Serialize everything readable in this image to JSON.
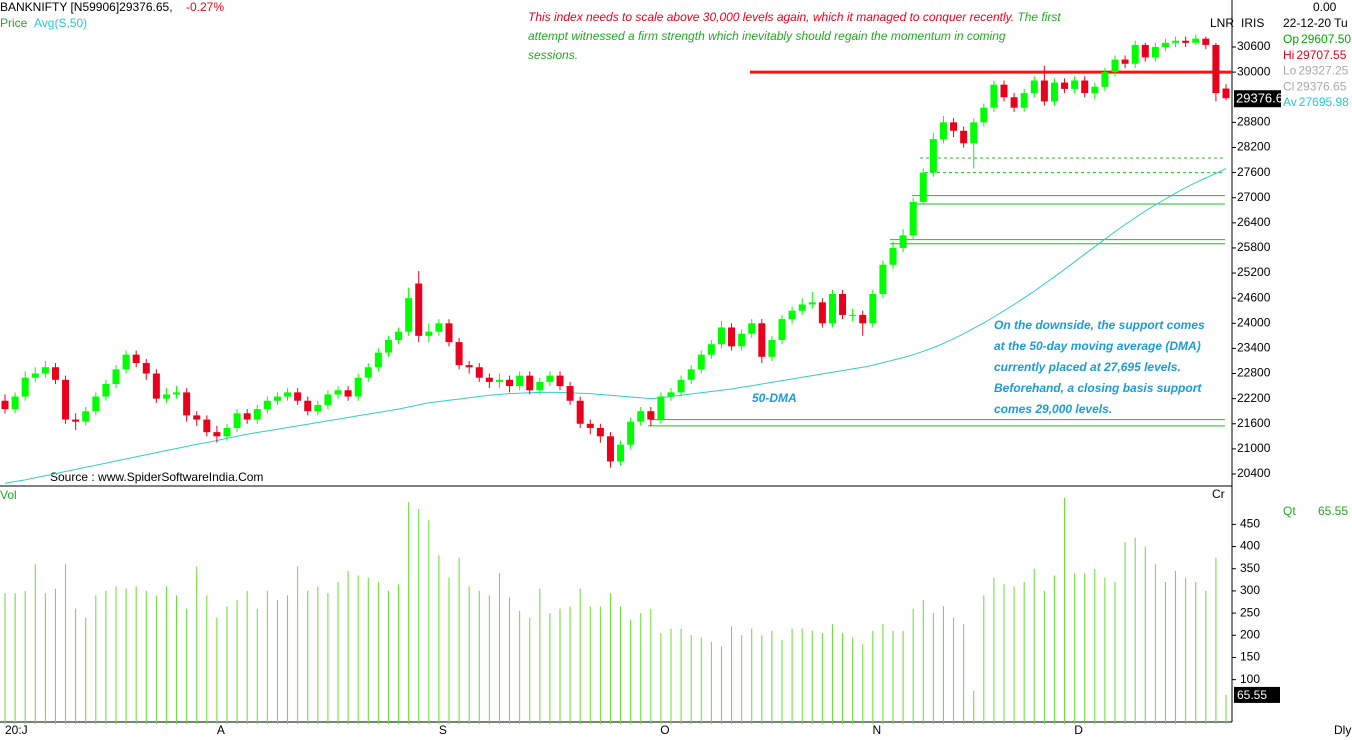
{
  "chart_data": [
    {
      "type": "candlestick",
      "title": "BANKNIFTY [N59906]29376.65,",
      "change": "-0.27%",
      "price_label": "Price",
      "ma_label": "Avg(S,50)",
      "top_labels": [
        "LNR",
        "IRIS"
      ],
      "corner_value": "0.00",
      "date": "22-12-20 Tu",
      "source": "Source : www.SpiderSoftwareIndia.Com",
      "price_tag": "29376.6",
      "up_color": "#00ff00",
      "down_color": "#e8001c",
      "categories": [
        "20:J",
        null,
        null,
        null,
        null,
        null,
        null,
        null,
        null,
        null,
        null,
        null,
        null,
        null,
        null,
        null,
        null,
        null,
        null,
        null,
        null,
        "A",
        null,
        null,
        null,
        null,
        null,
        null,
        null,
        null,
        null,
        null,
        null,
        null,
        null,
        null,
        null,
        null,
        null,
        null,
        null,
        null,
        null,
        "S",
        null,
        null,
        null,
        null,
        null,
        null,
        null,
        null,
        null,
        null,
        null,
        null,
        null,
        null,
        null,
        null,
        null,
        null,
        null,
        null,
        null,
        "O",
        null,
        null,
        null,
        null,
        null,
        null,
        null,
        null,
        null,
        null,
        null,
        null,
        null,
        null,
        null,
        null,
        null,
        null,
        null,
        null,
        "N",
        null,
        null,
        null,
        null,
        null,
        null,
        null,
        null,
        null,
        null,
        null,
        null,
        null,
        null,
        null,
        null,
        null,
        null,
        null,
        "D",
        null,
        null,
        null,
        null,
        null,
        null,
        null,
        null,
        null,
        null,
        null,
        null,
        null,
        null,
        null
      ],
      "open": [
        22150,
        21950,
        22250,
        22700,
        22800,
        22950,
        22650,
        21700,
        21650,
        21900,
        22250,
        22550,
        22900,
        23250,
        23050,
        22800,
        22200,
        22300,
        22350,
        21800,
        21700,
        21400,
        21300,
        21500,
        21850,
        21700,
        21950,
        22150,
        22250,
        22350,
        22150,
        21900,
        22050,
        22300,
        22400,
        22250,
        22700,
        22950,
        23300,
        23600,
        23800,
        24950,
        23700,
        23800,
        24000,
        23550,
        23000,
        22950,
        22700,
        22600,
        22650,
        22500,
        22750,
        22400,
        22600,
        22750,
        22500,
        22150,
        21600,
        21500,
        21300,
        20700,
        21100,
        21650,
        21900,
        21700,
        22250,
        22350,
        22650,
        22900,
        23250,
        23500,
        23900,
        23450,
        23750,
        24000,
        23200,
        23600,
        24100,
        24300,
        24450,
        24500,
        24000,
        24700,
        24200,
        24200,
        24000,
        24700,
        25400,
        25800,
        26100,
        26900,
        27600,
        28400,
        28800,
        28600,
        28300,
        28800,
        29150,
        29700,
        29400,
        29150,
        29500,
        29800,
        29300,
        29750,
        29600,
        29800,
        29500,
        29650,
        30000,
        30300,
        30200,
        30650,
        30350,
        30600,
        30700,
        30750,
        30700,
        30800,
        30650,
        29607.5
      ],
      "high": [
        22300,
        22350,
        22850,
        22950,
        23100,
        23050,
        22750,
        21850,
        22000,
        22350,
        22650,
        23000,
        23350,
        23350,
        23150,
        22900,
        22450,
        22500,
        22450,
        21900,
        21800,
        21550,
        21600,
        21950,
        21950,
        22050,
        22250,
        22350,
        22450,
        22450,
        22250,
        22150,
        22400,
        22500,
        22500,
        22800,
        23050,
        23400,
        23700,
        23900,
        24850,
        25250,
        24000,
        24100,
        24100,
        23650,
        23100,
        23050,
        22800,
        22800,
        22750,
        22850,
        22850,
        22700,
        22850,
        22850,
        22600,
        22250,
        21700,
        21600,
        21400,
        21200,
        21750,
        22000,
        22000,
        22350,
        22450,
        22750,
        23000,
        23350,
        23600,
        24050,
        24000,
        23850,
        24100,
        24100,
        23700,
        24200,
        24400,
        24600,
        24750,
        24600,
        24800,
        24800,
        24350,
        24300,
        24800,
        25500,
        25950,
        26250,
        27000,
        27700,
        28550,
        28950,
        28900,
        28700,
        28900,
        29250,
        29800,
        29800,
        29500,
        29600,
        29900,
        30150,
        29850,
        29850,
        29900,
        29900,
        29750,
        30100,
        30400,
        30400,
        30750,
        30700,
        30700,
        30800,
        30850,
        30850,
        30900,
        30850,
        30700,
        29707.55
      ],
      "low": [
        21850,
        21850,
        22150,
        22600,
        22700,
        22550,
        21600,
        21450,
        21550,
        21800,
        22150,
        22450,
        22800,
        22950,
        22650,
        22100,
        22100,
        22200,
        21650,
        21550,
        21300,
        21150,
        21200,
        21400,
        21600,
        21600,
        21850,
        22050,
        22150,
        22050,
        21800,
        21800,
        21950,
        22200,
        22150,
        22150,
        22600,
        22850,
        23200,
        23500,
        23700,
        23550,
        23550,
        23700,
        23450,
        22900,
        22800,
        22600,
        22450,
        22450,
        22350,
        22400,
        22300,
        22300,
        22500,
        22400,
        22050,
        21500,
        21350,
        21150,
        20550,
        20600,
        21000,
        21550,
        21550,
        21600,
        22150,
        22250,
        22550,
        22800,
        23150,
        23400,
        23350,
        23350,
        23650,
        23050,
        23100,
        23500,
        24000,
        24200,
        24350,
        23900,
        23900,
        24100,
        24050,
        23700,
        23900,
        24600,
        25300,
        25700,
        26000,
        26850,
        27500,
        28300,
        28450,
        28200,
        27700,
        28700,
        29050,
        29300,
        29050,
        29050,
        29400,
        29200,
        29200,
        29500,
        29500,
        29400,
        29350,
        29550,
        29900,
        30100,
        30100,
        30250,
        30250,
        30500,
        30600,
        30600,
        30650,
        30550,
        29300,
        29327.25
      ],
      "close": [
        21950,
        22250,
        22700,
        22800,
        22950,
        22650,
        21700,
        21650,
        21900,
        22250,
        22550,
        22900,
        23250,
        23050,
        22800,
        22200,
        22300,
        22350,
        21800,
        21700,
        21400,
        21300,
        21500,
        21850,
        21700,
        21950,
        22150,
        22250,
        22350,
        22150,
        21900,
        22050,
        22300,
        22400,
        22250,
        22700,
        22950,
        23300,
        23600,
        23800,
        24600,
        23700,
        23800,
        24000,
        23550,
        23000,
        22950,
        22700,
        22600,
        22650,
        22500,
        22750,
        22400,
        22600,
        22750,
        22500,
        22150,
        21600,
        21500,
        21300,
        20700,
        21100,
        21650,
        21900,
        21700,
        22250,
        22350,
        22650,
        22900,
        23250,
        23500,
        23900,
        23450,
        23750,
        24000,
        23200,
        23600,
        24100,
        24300,
        24450,
        24500,
        24000,
        24700,
        24200,
        24200,
        24000,
        24700,
        25400,
        25800,
        26100,
        26900,
        27600,
        28400,
        28800,
        28600,
        28300,
        28800,
        29150,
        29700,
        29400,
        29150,
        29500,
        29800,
        29300,
        29750,
        29600,
        29800,
        29500,
        29650,
        30000,
        30300,
        30200,
        30650,
        30350,
        30600,
        30700,
        30750,
        30700,
        30800,
        30650,
        29500,
        29376.65
      ],
      "ma": {
        "name": "50-DMA",
        "color": "#33cccc",
        "values": [
          20180,
          20220,
          20260,
          20310,
          20360,
          20410,
          20460,
          20510,
          20560,
          20610,
          20660,
          20710,
          20760,
          20810,
          20860,
          20910,
          20960,
          21010,
          21060,
          21110,
          21150,
          21200,
          21250,
          21300,
          21350,
          21390,
          21430,
          21470,
          21510,
          21550,
          21590,
          21630,
          21670,
          21710,
          21750,
          21790,
          21830,
          21870,
          21910,
          21950,
          22000,
          22050,
          22100,
          22130,
          22160,
          22190,
          22220,
          22250,
          22280,
          22300,
          22320,
          22330,
          22340,
          22350,
          22350,
          22350,
          22340,
          22330,
          22320,
          22300,
          22280,
          22260,
          22240,
          22220,
          22200,
          22220,
          22250,
          22280,
          22310,
          22340,
          22370,
          22400,
          22430,
          22470,
          22510,
          22550,
          22590,
          22630,
          22670,
          22710,
          22750,
          22790,
          22830,
          22870,
          22910,
          22950,
          23000,
          23060,
          23120,
          23180,
          23250,
          23330,
          23420,
          23520,
          23630,
          23750,
          23880,
          24010,
          24150,
          24300,
          24450,
          24610,
          24770,
          24940,
          25110,
          25290,
          25470,
          25650,
          25830,
          26010,
          26190,
          26360,
          26520,
          26680,
          26830,
          26970,
          27110,
          27240,
          27360,
          27470,
          27580,
          27695.98
        ]
      },
      "levels": [
        {
          "value": 30000,
          "color": "#ff1010"
        },
        {
          "value": 27950,
          "color": "#22bb22",
          "dashed": true
        },
        {
          "value": 27600,
          "color": "#22bb22",
          "dashed": true
        },
        {
          "value": 27050,
          "color": "#22bb22"
        },
        {
          "value": 26850,
          "color": "#22bb22"
        },
        {
          "value": 26000,
          "color": "#22bb22"
        },
        {
          "value": 25900,
          "color": "#22bb22"
        },
        {
          "value": 21700,
          "color": "#22bb22"
        },
        {
          "value": 21550,
          "color": "#22bb22"
        }
      ],
      "ylim": [
        20137,
        31723
      ],
      "yticks": [
        20400,
        21000,
        21600,
        22200,
        22800,
        23400,
        24000,
        24600,
        25200,
        25800,
        26400,
        27000,
        27600,
        28200,
        28800,
        30000,
        30600
      ],
      "info": [
        {
          "label": "Op",
          "value": "29607.50",
          "color": "#00aa00"
        },
        {
          "label": "Hi",
          "value": "29707.55",
          "color": "#e8001c"
        },
        {
          "label": "Lo",
          "value": "29327.25",
          "color": "#aaaaaa"
        },
        {
          "label": "Cl",
          "value": "29376.65",
          "color": "#aaaaaa"
        },
        {
          "label": "Av",
          "value": "27695.98",
          "color": "#22cccc"
        }
      ],
      "annotations": [
        {
          "lines": [
            [
              {
                "text": "This index needs to scale above 30,000 levels again, which it managed to conquer recently.",
                "color": "#e8001c"
              },
              {
                "text": "  The first",
                "color": "#22aa22"
              }
            ],
            [
              {
                "text": "attempt witnessed a firm strength which inevitably should regain the momentum in coming",
                "color": "#22aa22"
              }
            ],
            [
              {
                "text": "sessions.",
                "color": "#22aa22"
              }
            ]
          ]
        },
        {
          "lines": [
            [
              {
                "text": "On the downside, the support comes",
                "color": "#1c9cd6"
              }
            ],
            [
              {
                "text": "at the 50-day moving average (DMA)",
                "color": "#1c9cd6"
              }
            ],
            [
              {
                "text": "currently placed at 27,695 levels.",
                "color": "#1c9cd6"
              }
            ],
            [
              {
                "text": "Beforehand, a closing basis support",
                "color": "#1c9cd6"
              }
            ],
            [
              {
                "text": "comes 29,000 levels.",
                "color": "#1c9cd6"
              }
            ]
          ]
        }
      ]
    },
    {
      "type": "volume",
      "label": "Vol",
      "corner_label": "Cr",
      "qt_label": "Qt",
      "qt_value": "65.55",
      "tag": "65.55",
      "timeframe": "Dly",
      "color": "#66dd33",
      "values": [
        295,
        295,
        300,
        360,
        295,
        305,
        360,
        260,
        240,
        290,
        300,
        310,
        305,
        310,
        300,
        290,
        310,
        290,
        260,
        355,
        290,
        240,
        265,
        280,
        300,
        260,
        300,
        280,
        290,
        355,
        300,
        310,
        295,
        320,
        345,
        335,
        330,
        320,
        300,
        315,
        500,
        485,
        460,
        380,
        330,
        375,
        310,
        300,
        290,
        340,
        285,
        255,
        240,
        305,
        250,
        260,
        265,
        305,
        265,
        265,
        295,
        265,
        235,
        250,
        260,
        205,
        215,
        215,
        200,
        195,
        185,
        175,
        220,
        200,
        215,
        200,
        210,
        190,
        215,
        215,
        210,
        205,
        225,
        205,
        195,
        180,
        210,
        225,
        210,
        210,
        260,
        280,
        250,
        265,
        240,
        225,
        75,
        290,
        330,
        315,
        310,
        320,
        350,
        300,
        335,
        510,
        340,
        340,
        350,
        330,
        320,
        410,
        420,
        400,
        360,
        320,
        345,
        330,
        320,
        300,
        375,
        65.55
      ],
      "ylim": [
        0,
        532
      ],
      "yticks": [
        100,
        150,
        200,
        250,
        300,
        350,
        400,
        450
      ]
    }
  ]
}
